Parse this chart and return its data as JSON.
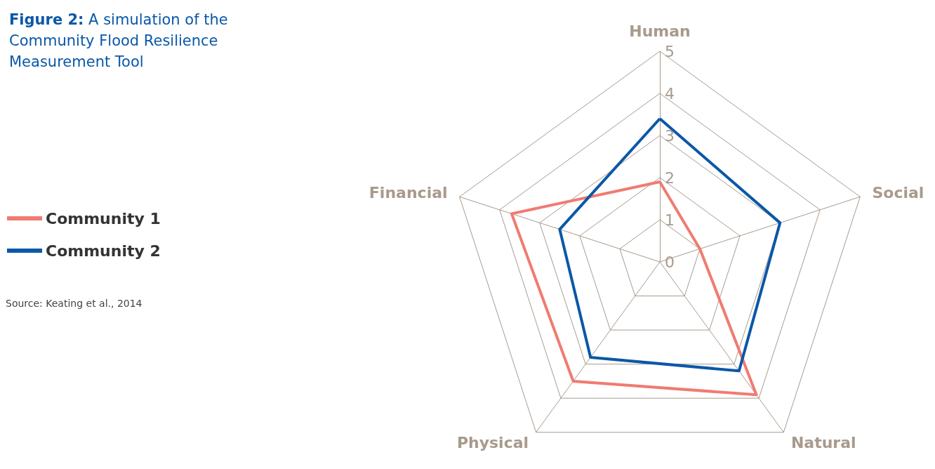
{
  "chart_data": {
    "type": "radar",
    "title": "Figure 2: A simulation of the Community Flood Resilience Measurement Tool",
    "categories": [
      "Human",
      "Social",
      "Natural",
      "Physical",
      "Financial"
    ],
    "series": [
      {
        "name": "Community 1",
        "color": "#f07b72",
        "values": [
          1.9,
          1,
          3.9,
          3.5,
          3.7
        ]
      },
      {
        "name": "Community 2",
        "color": "#0a58a8",
        "values": [
          3.4,
          3,
          3.2,
          2.8,
          2.5
        ]
      }
    ],
    "ylim": [
      0,
      5
    ],
    "yticks": [
      0,
      1,
      2,
      3,
      4,
      5
    ],
    "grid": true,
    "legend": "left",
    "marker": "none",
    "line_style": "solid",
    "annotations": [
      "Source: Keating et al., 2014"
    ]
  }
}
